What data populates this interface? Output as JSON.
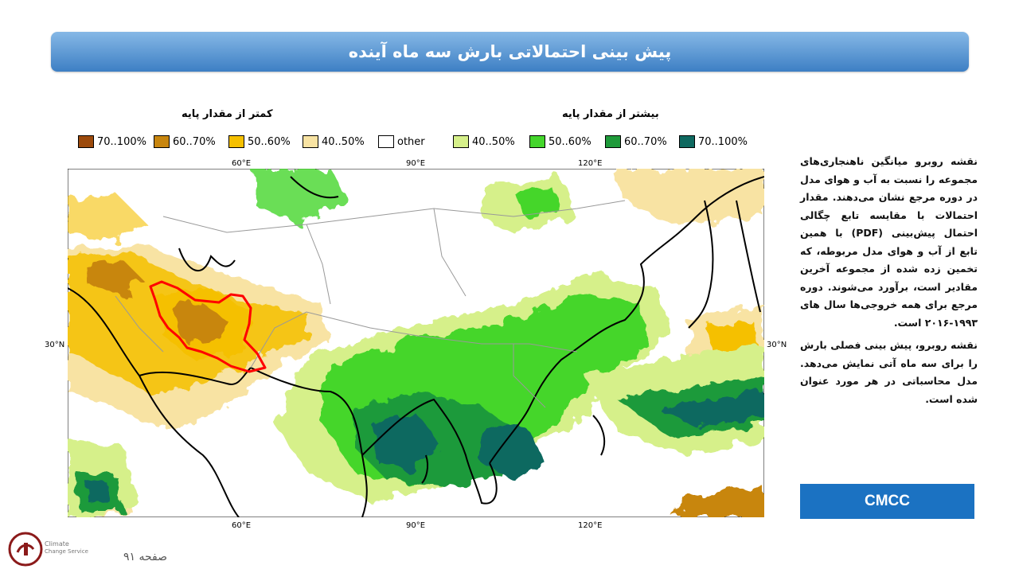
{
  "header": {
    "title": "پیش بینی احتمالاتی بارش سه ماه آینده"
  },
  "legend": {
    "below_title": "کمتر از مقدار پایه",
    "above_title": "بیشتر از مقدار پایه",
    "below_items": [
      {
        "label": "70..100%",
        "color": "#9c4a0c"
      },
      {
        "label": "60..70%",
        "color": "#c8860f"
      },
      {
        "label": "50..60%",
        "color": "#f5c000"
      },
      {
        "label": "40..50%",
        "color": "#f8e3a3"
      }
    ],
    "other_item": {
      "label": "other",
      "color": "#ffffff"
    },
    "above_items": [
      {
        "label": "40..50%",
        "color": "#d6f08a"
      },
      {
        "label": "50..60%",
        "color": "#44d62c"
      },
      {
        "label": "60..70%",
        "color": "#1f9a3a"
      },
      {
        "label": "70..100%",
        "color": "#0f6960"
      }
    ]
  },
  "map": {
    "top_ticks": [
      "60°E",
      "90°E",
      "120°E"
    ],
    "bottom_ticks": [
      "60°E",
      "90°E",
      "120°E"
    ],
    "left_lat": "30°N",
    "right_lat": "30°N",
    "highlight_border_color": "#ff0000"
  },
  "description": {
    "paragraph1": "نقشه روبرو میانگین ناهنجاری‌های مجموعه را نسبت به آب و هوای مدل در دوره مرجع نشان می‌دهند. مقدار احتمالات با مقایسه تابع چگالی احتمال پیش‌بینی (PDF) با همین تابع از آب و هوای مدل مربوطه، که تخمین زده شده از مجموعه آخرین مقادیر است، برآورد می‌شوند. دوره مرجع برای همه خروجی‌ها سال های ۱۹۹۳-۲۰۱۶ است.",
    "paragraph2": "نقشه روبرو، پیش بینی فصلی بارش را برای سه ماه آتی نمایش می‌دهد. مدل محاسباتی در هر مورد عنوان شده است."
  },
  "model_label": "CMCC",
  "footer": {
    "page": "صفحه ۹۱",
    "logo_text_1": "Climate",
    "logo_text_2": "Change Service"
  }
}
